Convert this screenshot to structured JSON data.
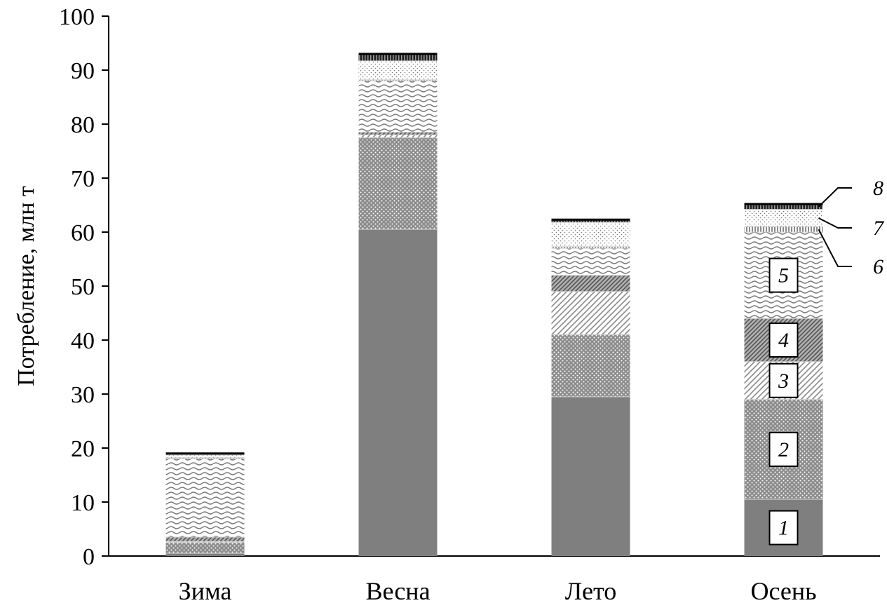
{
  "chart_data": {
    "type": "bar",
    "stacked": true,
    "ylabel": "Потребление, млн т",
    "xlabel": "",
    "ylim": [
      0,
      100
    ],
    "yticks": [
      0,
      10,
      20,
      30,
      40,
      50,
      60,
      70,
      80,
      90,
      100
    ],
    "categories": [
      "Зима",
      "Весна",
      "Лето",
      "Осень"
    ],
    "series": [
      {
        "name": "1",
        "values": [
          0.5,
          60.5,
          29.5,
          10.5
        ]
      },
      {
        "name": "2",
        "values": [
          2.0,
          17.0,
          11.5,
          18.5
        ]
      },
      {
        "name": "3",
        "values": [
          0.2,
          0.5,
          8.0,
          7.0
        ]
      },
      {
        "name": "4",
        "values": [
          0.8,
          0.5,
          3.0,
          8.0
        ]
      },
      {
        "name": "5",
        "values": [
          14.5,
          9.5,
          5.0,
          16.0
        ]
      },
      {
        "name": "6",
        "values": [
          0.2,
          0.2,
          0.3,
          1.0
        ]
      },
      {
        "name": "7",
        "values": [
          0.5,
          3.5,
          4.5,
          3.2
        ]
      },
      {
        "name": "8",
        "values": [
          0.3,
          1.3,
          0.5,
          1.0
        ]
      }
    ],
    "grid": false,
    "legend": "inline-labels-on-last-bar"
  }
}
